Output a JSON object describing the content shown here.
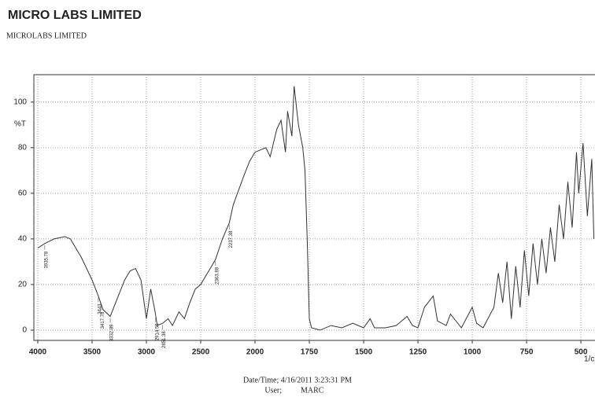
{
  "header": {
    "title": "MICRO LABS LIMITED",
    "subtitle": "MICROLABS LIMITED"
  },
  "chart_data": {
    "type": "line",
    "ylabel": "%T",
    "xlabel": "1/c",
    "color": "#333333",
    "grid": true,
    "xlim": [
      4000,
      435
    ],
    "x_break": 2000,
    "xticks": [
      4000,
      3500,
      3000,
      2500,
      2000,
      1750,
      1500,
      1250,
      1000,
      750,
      500
    ],
    "ylim": [
      -4.5,
      112
    ],
    "yticks": [
      0,
      20,
      40,
      60,
      80,
      100
    ],
    "x": [
      4000,
      3935,
      3850,
      3750,
      3700,
      3600,
      3500,
      3443,
      3400,
      3333,
      3300,
      3200,
      3150,
      3100,
      3050,
      3000,
      2960,
      2920,
      2900,
      2850,
      2800,
      2760,
      2700,
      2650,
      2600,
      2550,
      2500,
      2450,
      2400,
      2364,
      2300,
      2237,
      2200,
      2100,
      2050,
      2000,
      1950,
      1930,
      1900,
      1880,
      1860,
      1850,
      1830,
      1820,
      1800,
      1780,
      1770,
      1760,
      1750,
      1740,
      1700,
      1650,
      1600,
      1550,
      1500,
      1470,
      1450,
      1400,
      1350,
      1300,
      1275,
      1250,
      1220,
      1180,
      1160,
      1120,
      1100,
      1050,
      1000,
      980,
      950,
      900,
      880,
      860,
      840,
      820,
      800,
      780,
      760,
      740,
      720,
      700,
      680,
      660,
      640,
      620,
      600,
      580,
      560,
      540,
      520,
      510,
      490,
      470,
      450,
      440
    ],
    "values": [
      36,
      38,
      40,
      41,
      40,
      32,
      22,
      15,
      9,
      6,
      10,
      22,
      26,
      27,
      22,
      5,
      18,
      8,
      2,
      3,
      5,
      2,
      8,
      5,
      12,
      18,
      20,
      24,
      28,
      31,
      40,
      47,
      55,
      68,
      74,
      78,
      80,
      76,
      88,
      92,
      78,
      96,
      85,
      107,
      90,
      80,
      70,
      40,
      5,
      1,
      0,
      2,
      1,
      3,
      1,
      5,
      1,
      1,
      2,
      6,
      2,
      1,
      10,
      15,
      4,
      2,
      7,
      1,
      10,
      3,
      1,
      10,
      25,
      12,
      30,
      5,
      28,
      10,
      35,
      15,
      38,
      20,
      40,
      25,
      45,
      30,
      55,
      40,
      65,
      45,
      78,
      60,
      82,
      50,
      75,
      40
    ],
    "peaks": [
      3935.78,
      3443.0,
      3417.78,
      3332.89,
      2914.56,
      2851.38,
      2363.88,
      2237.38
    ]
  },
  "footer": {
    "datetime": "Date/Time; 4/16/2011 3:23:31 PM",
    "user_label": "User;",
    "user": "MARC"
  }
}
